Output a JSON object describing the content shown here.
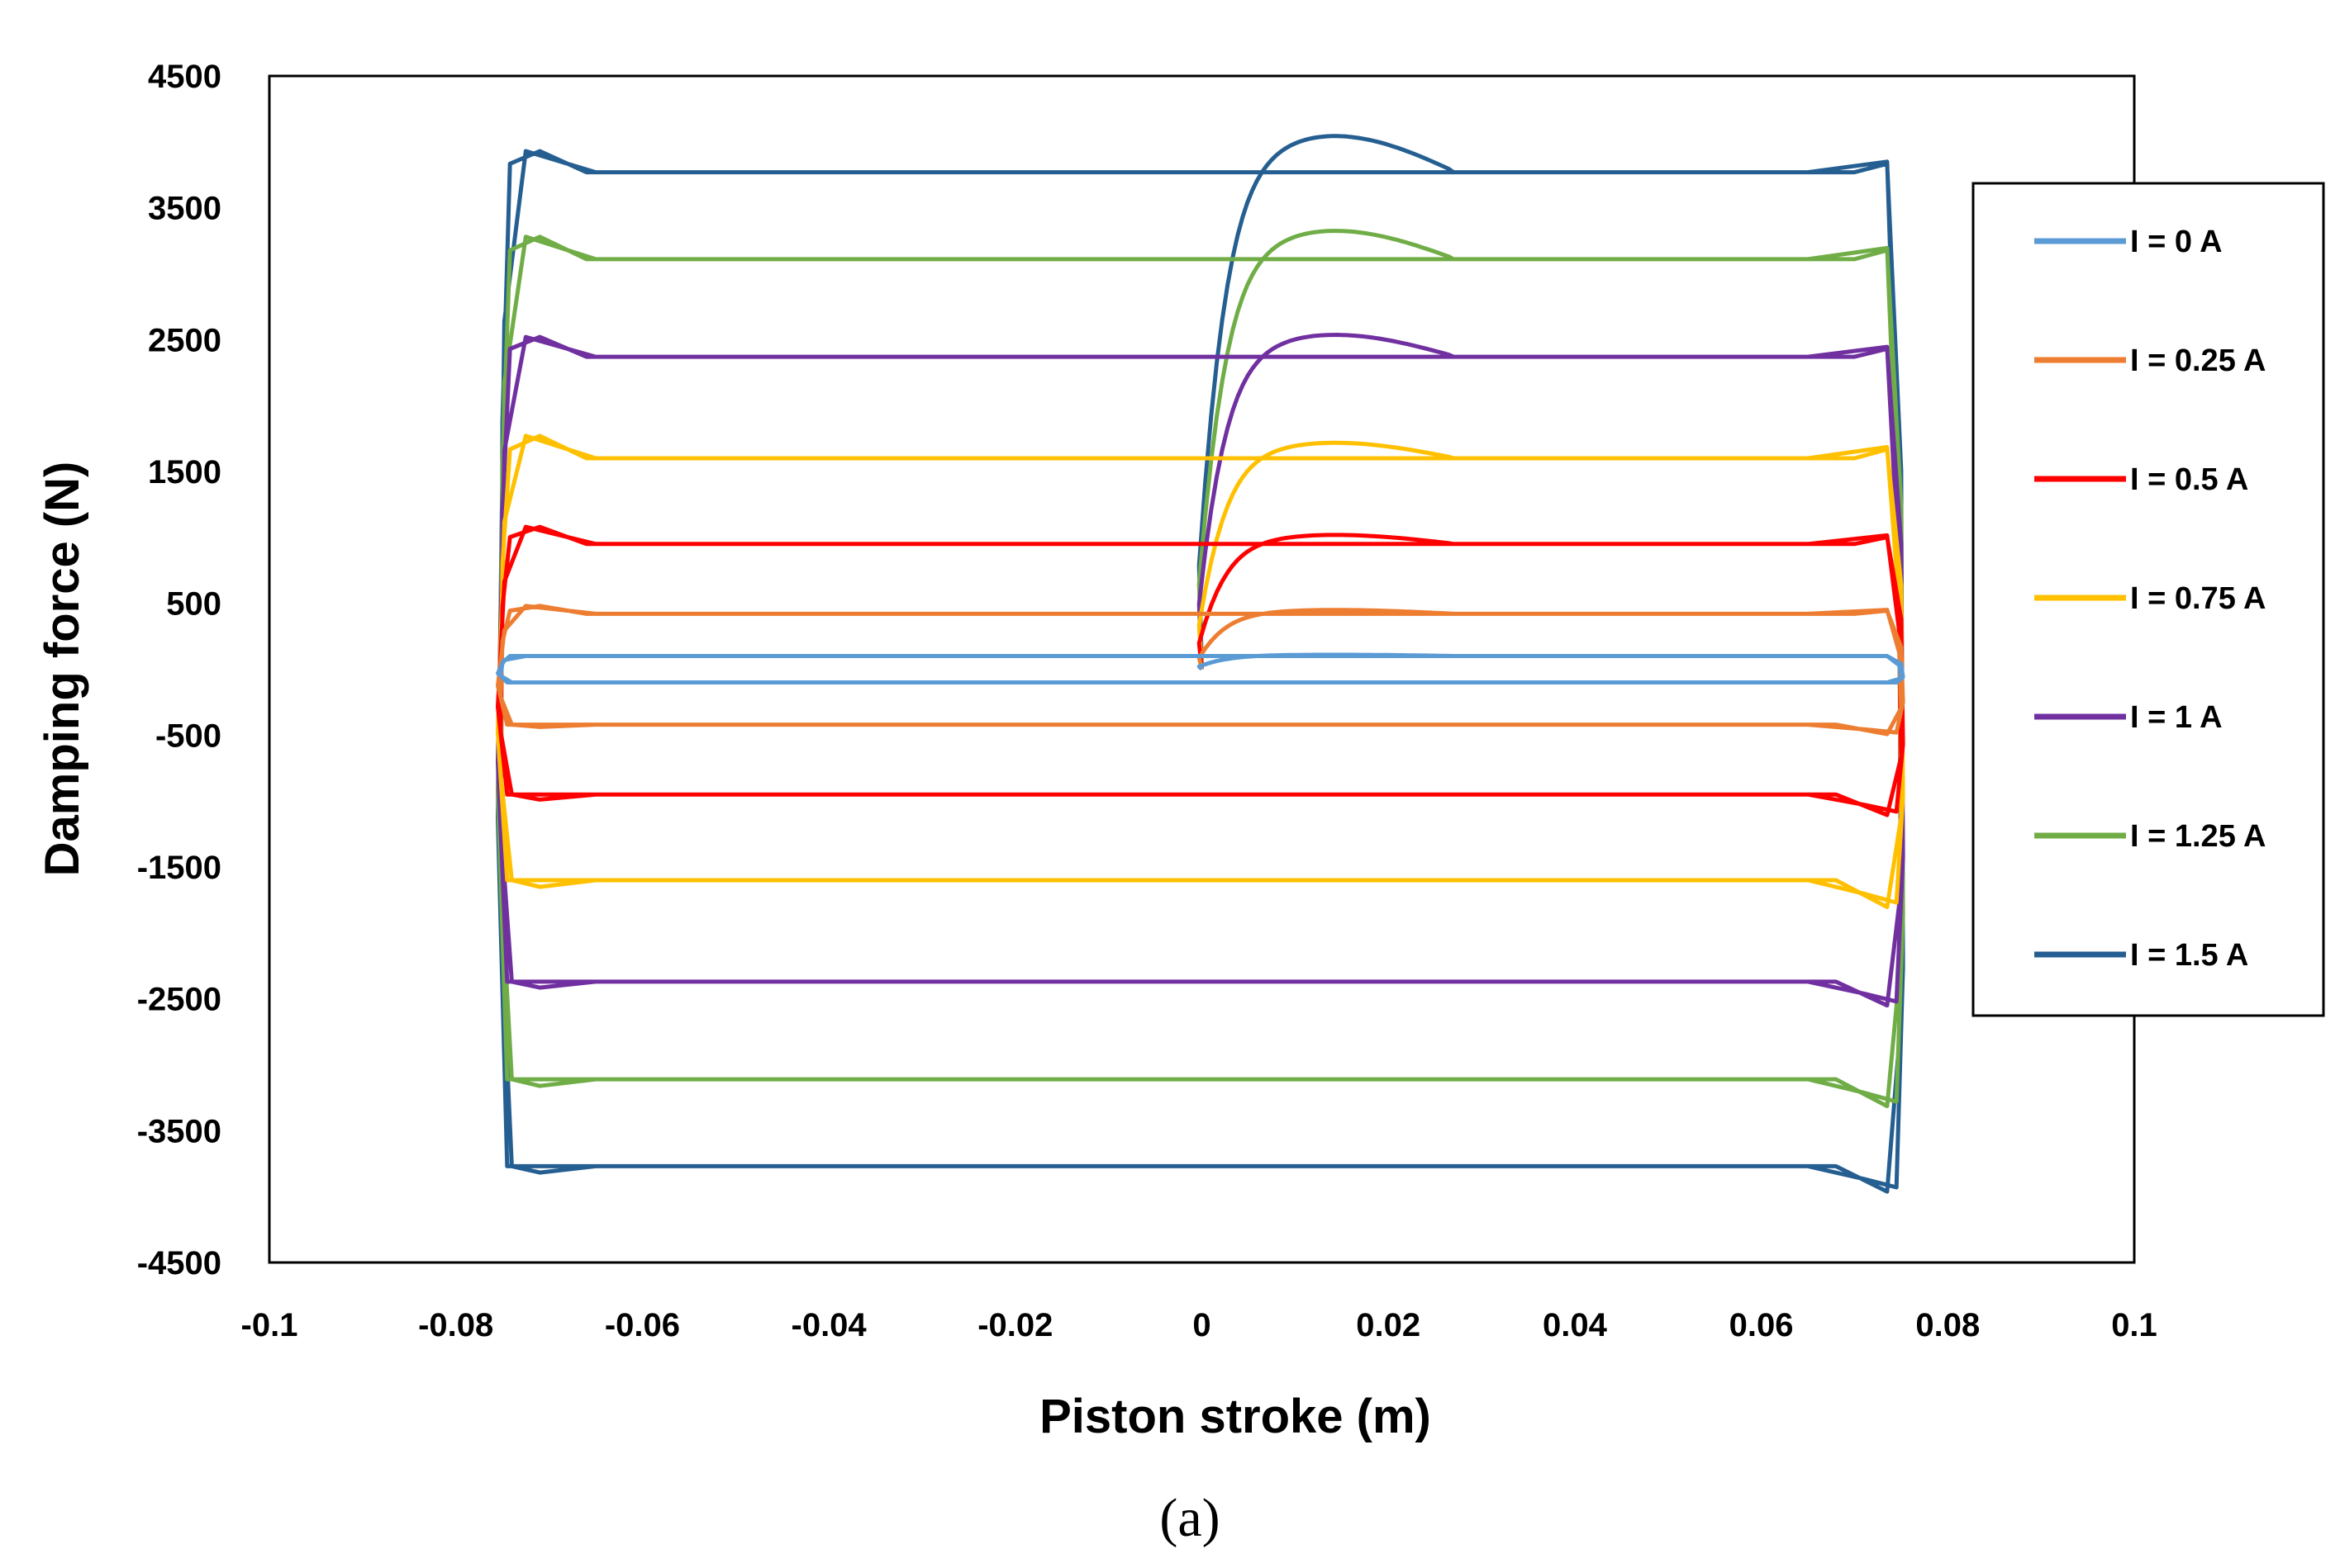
{
  "chart_data": {
    "type": "line",
    "title": "",
    "xlabel": "Piston stroke (m)",
    "ylabel": "Damping force (N)",
    "xlim": [
      -0.1,
      0.1
    ],
    "ylim": [
      -4500,
      4500
    ],
    "x_ticks": [
      -0.1,
      -0.08,
      -0.06,
      -0.04,
      -0.02,
      0,
      0.02,
      0.04,
      0.06,
      0.08,
      0.1
    ],
    "y_ticks": [
      4500,
      3500,
      2500,
      1500,
      500,
      -500,
      -1500,
      -2500,
      -3500,
      -4500
    ],
    "grid": false,
    "legend_position": "right",
    "caption": "(a)",
    "stroke_amplitude": 0.075,
    "series": [
      {
        "name": "I = 0 A",
        "color": "#5B9BD5",
        "pos_force": 100,
        "neg_force": -100,
        "overshoot": 0,
        "start_peak": 110
      },
      {
        "name": "I = 0.25 A",
        "color": "#ED7D31",
        "pos_force": 420,
        "neg_force": -420,
        "overshoot": 60,
        "start_peak": 450
      },
      {
        "name": "I = 0.5 A",
        "color": "#FF0000",
        "pos_force": 950,
        "neg_force": -950,
        "overshoot": 130,
        "start_peak": 1020
      },
      {
        "name": "I = 0.75 A",
        "color": "#FFC000",
        "pos_force": 1600,
        "neg_force": -1600,
        "overshoot": 170,
        "start_peak": 1720
      },
      {
        "name": "I = 1 A",
        "color": "#7030A0",
        "pos_force": 2370,
        "neg_force": -2370,
        "overshoot": 150,
        "start_peak": 2540
      },
      {
        "name": "I = 1.25 A",
        "color": "#70AD47",
        "pos_force": 3110,
        "neg_force": -3110,
        "overshoot": 170,
        "start_peak": 3330
      },
      {
        "name": "I = 1.5 A",
        "color": "#255E91",
        "pos_force": 3770,
        "neg_force": -3770,
        "overshoot": 160,
        "start_peak": 4050
      }
    ]
  }
}
